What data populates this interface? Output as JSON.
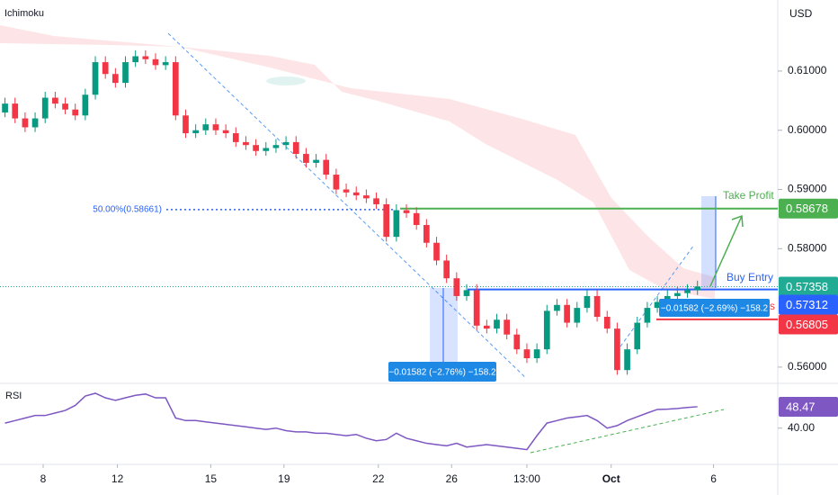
{
  "chart_data": {
    "type": "candlestick",
    "title": "Ichimoku",
    "y_axis_label": "USD",
    "up_color": "#089981",
    "down_color": "#f23645",
    "xlim": [
      -0.5,
      77
    ],
    "xticks": [
      {
        "value": 3.8,
        "label": "8"
      },
      {
        "value": 11.2,
        "label": "12"
      },
      {
        "value": 20.5,
        "label": "15"
      },
      {
        "value": 27.8,
        "label": "19"
      },
      {
        "value": 37.2,
        "label": "22"
      },
      {
        "value": 44.5,
        "label": "26"
      },
      {
        "value": 52,
        "label": "13:00"
      },
      {
        "value": 60.4,
        "label": "Oct"
      },
      {
        "value": 70.6,
        "label": "6"
      }
    ],
    "ylim": [
      0.5574,
      0.622
    ],
    "yticks": [
      {
        "value": 0.56,
        "label": "0.56000"
      },
      {
        "value": 0.58,
        "label": "0.58000"
      },
      {
        "value": 0.59,
        "label": "0.59000"
      },
      {
        "value": 0.6,
        "label": "0.60000"
      },
      {
        "value": 0.61,
        "label": "0.61000"
      }
    ],
    "open": [
      0.603,
      0.6045,
      0.602,
      0.6005,
      0.602,
      0.6055,
      0.6045,
      0.6035,
      0.6025,
      0.606,
      0.6115,
      0.6095,
      0.608,
      0.6115,
      0.6125,
      0.612,
      0.611,
      0.6115,
      0.6025,
      0.5995,
      0.6,
      0.601,
      0.6,
      0.5995,
      0.598,
      0.5975,
      0.5965,
      0.597,
      0.5975,
      0.598,
      0.596,
      0.5945,
      0.595,
      0.5925,
      0.59,
      0.5895,
      0.589,
      0.5885,
      0.5875,
      0.582,
      0.5865,
      0.586,
      0.584,
      0.581,
      0.578,
      0.575,
      0.572,
      0.573,
      0.567,
      0.5665,
      0.568,
      0.5655,
      0.563,
      0.5615,
      0.563,
      0.5695,
      0.5705,
      0.5675,
      0.57,
      0.572,
      0.5685,
      0.5665,
      0.5595,
      0.563,
      0.5675,
      0.57,
      0.571,
      0.572,
      0.5725,
      0.573
    ],
    "high": [
      0.6055,
      0.6055,
      0.603,
      0.603,
      0.6065,
      0.6065,
      0.6055,
      0.6045,
      0.607,
      0.6125,
      0.6125,
      0.6105,
      0.6125,
      0.6135,
      0.6135,
      0.613,
      0.6125,
      0.6125,
      0.6035,
      0.601,
      0.602,
      0.602,
      0.601,
      0.6005,
      0.599,
      0.5985,
      0.598,
      0.5985,
      0.599,
      0.599,
      0.597,
      0.596,
      0.596,
      0.5935,
      0.591,
      0.5905,
      0.59,
      0.5895,
      0.5885,
      0.5875,
      0.5875,
      0.587,
      0.585,
      0.582,
      0.579,
      0.576,
      0.574,
      0.574,
      0.568,
      0.569,
      0.569,
      0.5665,
      0.564,
      0.564,
      0.5705,
      0.5715,
      0.5715,
      0.571,
      0.573,
      0.573,
      0.5695,
      0.5675,
      0.564,
      0.5685,
      0.571,
      0.572,
      0.573,
      0.5735,
      0.574,
      0.5746
    ],
    "low": [
      0.6022,
      0.6012,
      0.5997,
      0.5997,
      0.6012,
      0.6037,
      0.6027,
      0.6017,
      0.6017,
      0.6052,
      0.6087,
      0.6072,
      0.6072,
      0.6107,
      0.6112,
      0.6102,
      0.6102,
      0.6017,
      0.5987,
      0.5987,
      0.5992,
      0.5992,
      0.5987,
      0.5972,
      0.5967,
      0.5957,
      0.5957,
      0.5962,
      0.5967,
      0.5952,
      0.5937,
      0.5937,
      0.5917,
      0.5892,
      0.5887,
      0.5882,
      0.5877,
      0.5867,
      0.5812,
      0.5812,
      0.5852,
      0.5832,
      0.5802,
      0.5772,
      0.5742,
      0.5712,
      0.5712,
      0.5662,
      0.5657,
      0.5657,
      0.5647,
      0.5622,
      0.5607,
      0.5607,
      0.5622,
      0.5687,
      0.5667,
      0.5667,
      0.5692,
      0.5677,
      0.5657,
      0.5587,
      0.5587,
      0.5622,
      0.5667,
      0.5692,
      0.5702,
      0.5712,
      0.5717,
      0.5722
    ],
    "close": [
      0.6045,
      0.602,
      0.6005,
      0.602,
      0.6055,
      0.6045,
      0.6035,
      0.6025,
      0.606,
      0.6115,
      0.6095,
      0.608,
      0.6115,
      0.6125,
      0.612,
      0.611,
      0.6115,
      0.6025,
      0.5995,
      0.6,
      0.601,
      0.6,
      0.5995,
      0.598,
      0.5975,
      0.5965,
      0.597,
      0.5975,
      0.598,
      0.596,
      0.5945,
      0.595,
      0.5925,
      0.59,
      0.5895,
      0.589,
      0.5885,
      0.5875,
      0.582,
      0.5865,
      0.586,
      0.584,
      0.581,
      0.578,
      0.575,
      0.572,
      0.573,
      0.567,
      0.5665,
      0.568,
      0.5655,
      0.563,
      0.5615,
      0.563,
      0.5695,
      0.5705,
      0.5675,
      0.57,
      0.572,
      0.5685,
      0.5665,
      0.5595,
      0.563,
      0.5675,
      0.57,
      0.571,
      0.572,
      0.5725,
      0.573,
      0.5736
    ],
    "levels": [
      {
        "name": "Take Profit",
        "value": 0.58678,
        "color": "#4caf50"
      },
      {
        "name": "Buy Entry",
        "value": 0.57312,
        "color": "#2962ff"
      },
      {
        "name": "Stop Loss",
        "value": 0.56805,
        "color": "#f23645"
      }
    ],
    "current_price": {
      "value": 0.57358,
      "color": "#22ab94"
    },
    "fib": {
      "label": "50.00%(0.58661)",
      "value": 0.58661,
      "color": "#2962ff"
    },
    "measurements": [
      "−0.01582 (−2.76%) −158.2",
      "−0.01582 (−2.69%) −158.2"
    ],
    "rsi": {
      "title": "RSI",
      "color": "#7e57c2",
      "ylim": [
        26,
        57
      ],
      "yticks": [
        {
          "value": 40,
          "label": "40.00"
        }
      ],
      "values": [
        42,
        43,
        44,
        45,
        45,
        46,
        47,
        49,
        52.7,
        53.8,
        52,
        51,
        52,
        53,
        53.5,
        52,
        52,
        44,
        43,
        43,
        42.5,
        42,
        41.5,
        41,
        40.5,
        40,
        39.5,
        40,
        39,
        38.5,
        38.5,
        38,
        38,
        37.5,
        37,
        37.5,
        36,
        35,
        35.5,
        38,
        36,
        35,
        34,
        33.5,
        33,
        34,
        32.5,
        33,
        33.5,
        33,
        32.5,
        32,
        31.5,
        37,
        42,
        43,
        44,
        44.5,
        45,
        43,
        40,
        41,
        43,
        44.5,
        46,
        47.4,
        47.5,
        47.8,
        48.2,
        48.47
      ]
    }
  }
}
